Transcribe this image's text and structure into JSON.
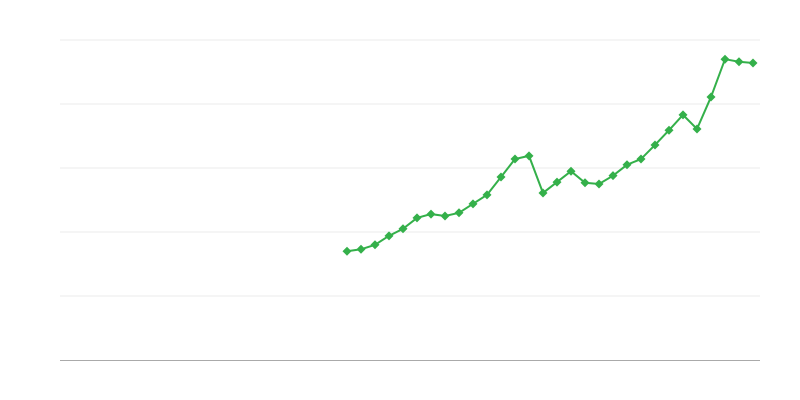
{
  "chart_data": {
    "type": "line",
    "title": "",
    "xlabel": "",
    "ylabel": "",
    "x_count": 50,
    "x": [
      20,
      21,
      22,
      23,
      24,
      25,
      26,
      27,
      28,
      29,
      30,
      31,
      32,
      33,
      34,
      35,
      36,
      37,
      38,
      39,
      40,
      41,
      42,
      43,
      44,
      45,
      46,
      47,
      48,
      49
    ],
    "xlim": [
      0,
      49
    ],
    "ylim": [
      0,
      5
    ],
    "grid": true,
    "gridlines": [
      1,
      2,
      3,
      4,
      5
    ],
    "legend": "none",
    "series": [
      {
        "color": "#34b04a",
        "marker": "diamond",
        "values": [
          1.7,
          1.73,
          1.8,
          1.94,
          2.05,
          2.22,
          2.28,
          2.25,
          2.3,
          2.44,
          2.58,
          2.86,
          3.14,
          3.19,
          2.61,
          2.78,
          2.95,
          2.77,
          2.75,
          2.88,
          3.05,
          3.14,
          3.36,
          3.59,
          3.83,
          3.61,
          4.11,
          4.7,
          4.66,
          4.64
        ]
      }
    ],
    "colors": {
      "grid": "#ebebeb",
      "axis": "#aaaaaa"
    }
  }
}
